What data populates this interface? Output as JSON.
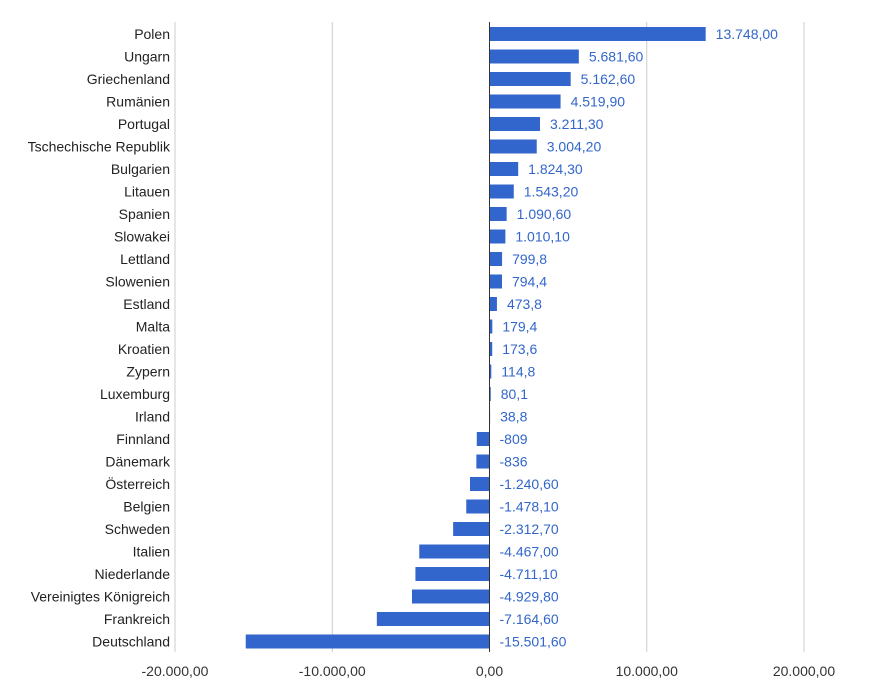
{
  "chart_data": {
    "type": "bar",
    "orientation": "horizontal",
    "categories": [
      "Polen",
      "Ungarn",
      "Griechenland",
      "Rumänien",
      "Portugal",
      "Tschechische Republik",
      "Bulgarien",
      "Litauen",
      "Spanien",
      "Slowakei",
      "Lettland",
      "Slowenien",
      "Estland",
      "Malta",
      "Kroatien",
      "Zypern",
      "Luxemburg",
      "Irland",
      "Finnland",
      "Dänemark",
      "Österreich",
      "Belgien",
      "Schweden",
      "Italien",
      "Niederlande",
      "Vereinigtes Königreich",
      "Frankreich",
      "Deutschland"
    ],
    "values": [
      13748.0,
      5681.6,
      5162.6,
      4519.9,
      3211.3,
      3004.2,
      1824.3,
      1543.2,
      1090.6,
      1010.1,
      799.8,
      794.4,
      473.8,
      179.4,
      173.6,
      114.8,
      80.1,
      38.8,
      -809,
      -836,
      -1240.6,
      -1478.1,
      -2312.7,
      -4467.0,
      -4711.1,
      -4929.8,
      -7164.6,
      -15501.6
    ],
    "value_labels": [
      "13.748,00",
      "5.681,60",
      "5.162,60",
      "4.519,90",
      "3.211,30",
      "3.004,20",
      "1.824,30",
      "1.543,20",
      "1.090,60",
      "1.010,10",
      "799,8",
      "794,4",
      "473,8",
      "179,4",
      "173,6",
      "114,8",
      "80,1",
      "38,8",
      "-809",
      "-836",
      "-1.240,60",
      "-1.478,10",
      "-2.312,70",
      "-4.467,00",
      "-4.711,10",
      "-4.929,80",
      "-7.164,60",
      "-15.501,60"
    ],
    "xlim": [
      -20000,
      20000
    ],
    "x_ticks": [
      -20000,
      -10000,
      0,
      10000,
      20000
    ],
    "x_tick_labels": [
      "-20.000,00",
      "-10.000,00",
      "0,00",
      "10.000,00",
      "20.000,00"
    ],
    "grid": true,
    "colors": {
      "bar": "#3366cc",
      "value_label": "#3366cc",
      "grid": "#cccccc",
      "axis": "#333333"
    }
  }
}
